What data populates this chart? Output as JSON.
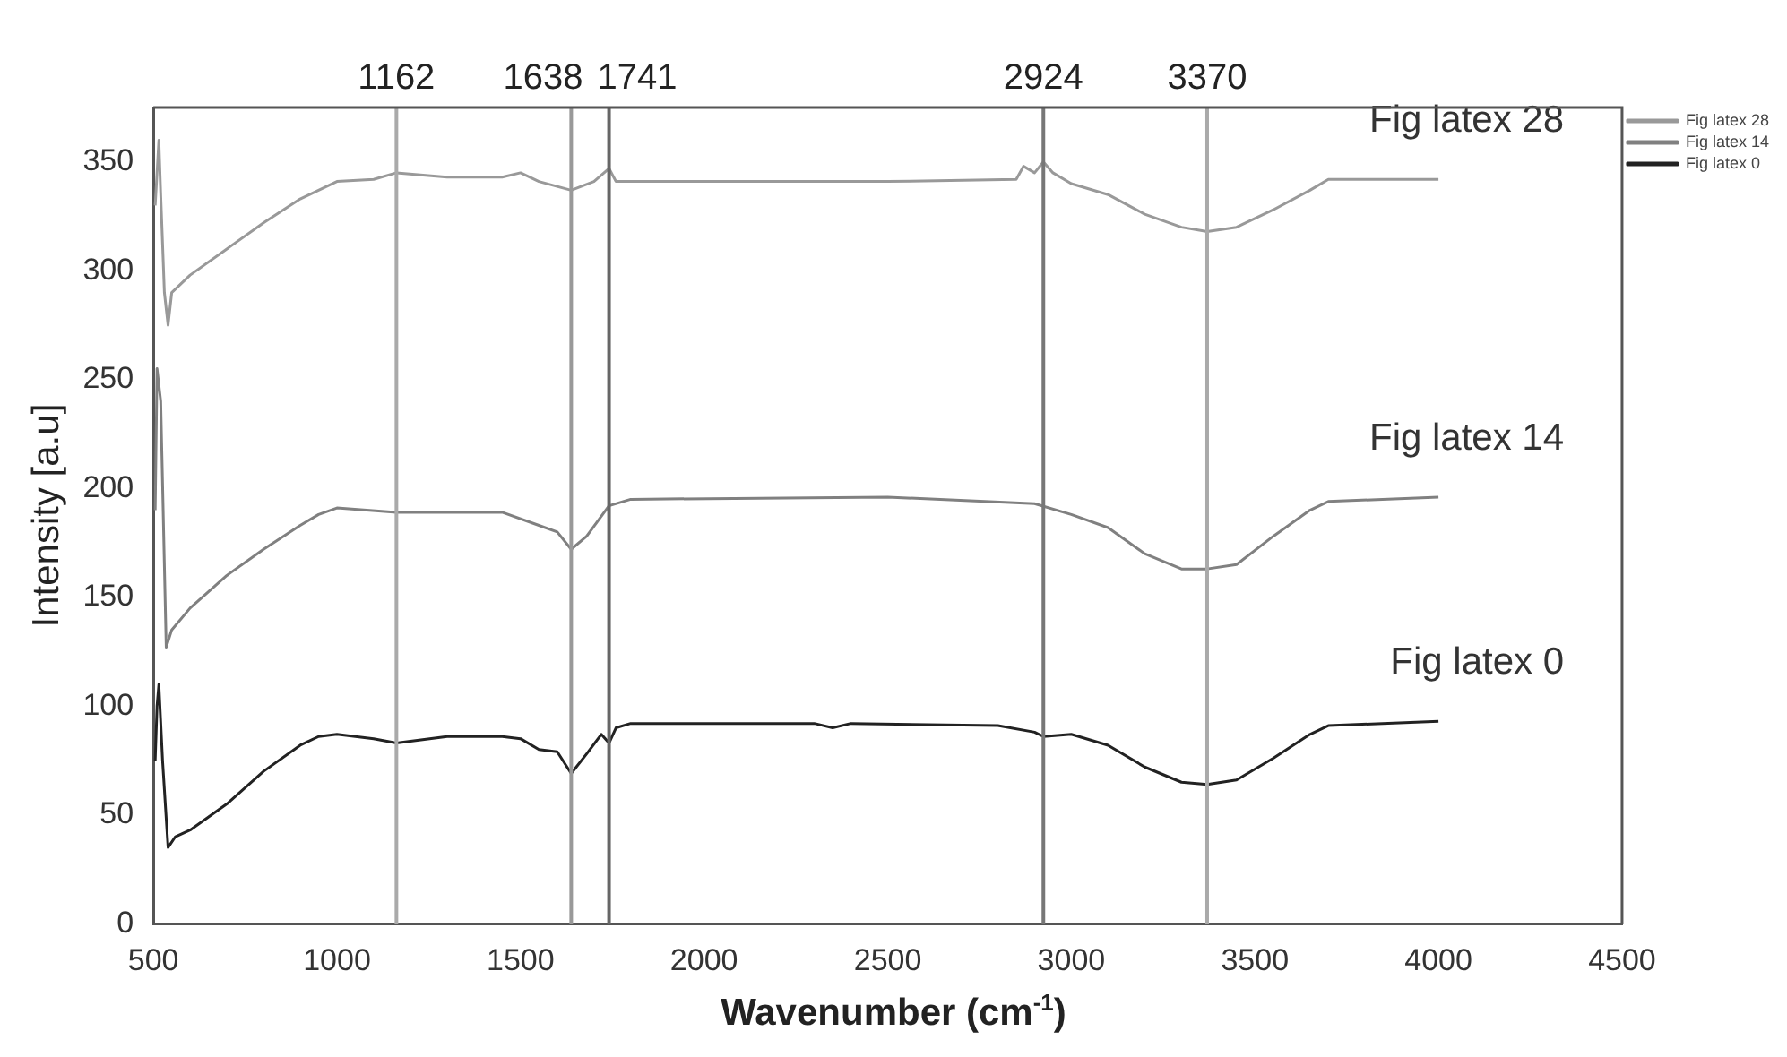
{
  "chart_data": {
    "type": "line",
    "xlabel": "Wavenumber (cm$^{-1}$)",
    "ylabel": "Intensity [a.u]",
    "xlim": [
      500,
      4500
    ],
    "xticks": [
      500,
      1000,
      1500,
      2000,
      2500,
      3000,
      3500,
      4000,
      4500
    ],
    "ylim": [
      0,
      375
    ],
    "yticks": [
      0,
      50,
      100,
      150,
      200,
      250,
      300,
      350
    ],
    "grid": false,
    "legend": "top right",
    "marker": "none",
    "line_style": "solid",
    "series": [
      {
        "name": "Fig latex 28",
        "color": "#999999",
        "x": [
          505,
          515,
          520,
          530,
          540,
          550,
          600,
          700,
          800,
          900,
          1000,
          1100,
          1162,
          1300,
          1450,
          1500,
          1550,
          1638,
          1700,
          1741,
          1760,
          2000,
          2500,
          2850,
          2870,
          2900,
          2924,
          2950,
          3000,
          3100,
          3200,
          3300,
          3370,
          3450,
          3550,
          3650,
          3700,
          4000
        ],
        "values": [
          330,
          360,
          335,
          290,
          275,
          290,
          298,
          310,
          322,
          333,
          341,
          342,
          345,
          343,
          343,
          345,
          341,
          337,
          341,
          347,
          341,
          341,
          341,
          342,
          348,
          345,
          350,
          345,
          340,
          335,
          326,
          320,
          318,
          320,
          328,
          337,
          342,
          342
        ]
      },
      {
        "name": "Fig latex 14",
        "color": "#808080",
        "x": [
          505,
          510,
          520,
          535,
          550,
          600,
          700,
          800,
          900,
          950,
          1000,
          1162,
          1450,
          1550,
          1600,
          1638,
          1680,
          1741,
          1800,
          2500,
          2900,
          3000,
          3100,
          3200,
          3300,
          3370,
          3450,
          3550,
          3650,
          3700,
          4000
        ],
        "values": [
          190,
          255,
          240,
          127,
          135,
          145,
          160,
          172,
          183,
          188,
          191,
          189,
          189,
          183,
          180,
          172,
          178,
          192,
          195,
          196,
          193,
          188,
          182,
          170,
          163,
          163,
          165,
          178,
          190,
          194,
          196
        ]
      },
      {
        "name": "Fig latex 0",
        "color": "#222222",
        "x": [
          505,
          510,
          515,
          525,
          540,
          560,
          600,
          700,
          800,
          900,
          950,
          1000,
          1100,
          1162,
          1300,
          1450,
          1500,
          1550,
          1600,
          1638,
          1680,
          1720,
          1741,
          1760,
          1800,
          2300,
          2350,
          2400,
          2800,
          2900,
          2924,
          3000,
          3100,
          3200,
          3300,
          3370,
          3450,
          3550,
          3650,
          3700,
          4000
        ],
        "values": [
          75,
          100,
          110,
          75,
          35,
          40,
          43,
          55,
          70,
          82,
          86,
          87,
          85,
          83,
          86,
          86,
          85,
          80,
          79,
          69,
          78,
          87,
          83,
          90,
          92,
          92,
          90,
          92,
          91,
          88,
          86,
          87,
          82,
          72,
          65,
          64,
          66,
          76,
          87,
          91,
          93
        ]
      }
    ],
    "ref_lines": [
      {
        "axis": "x",
        "value": 1162,
        "label": "1162",
        "color": "#aaaaaa"
      },
      {
        "axis": "x",
        "value": 1638,
        "label": "1638",
        "color": "#999999"
      },
      {
        "axis": "x",
        "value": 1741,
        "label": "1741",
        "color": "#666666"
      },
      {
        "axis": "x",
        "value": 2924,
        "label": "2924",
        "color": "#777777"
      },
      {
        "axis": "x",
        "value": 3370,
        "label": "3370",
        "color": "#aaaaaa"
      }
    ]
  }
}
